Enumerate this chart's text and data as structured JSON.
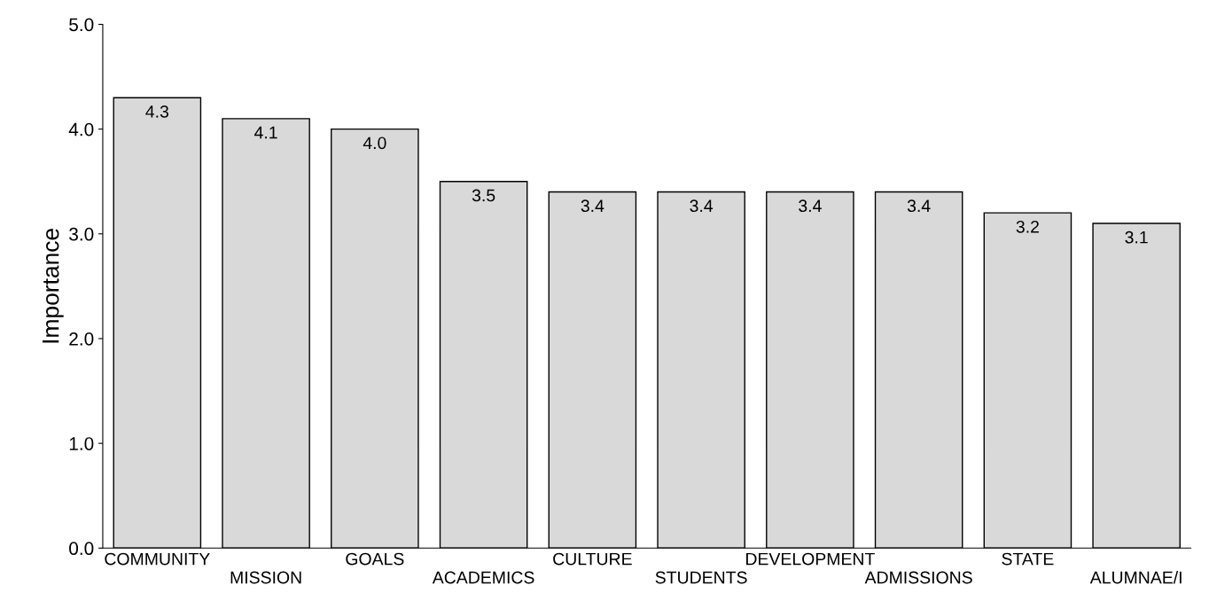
{
  "chart_data": {
    "type": "bar",
    "ylabel": "Importance",
    "categories": [
      "COMMUNITY",
      "MISSION",
      "GOALS",
      "ACADEMICS",
      "CULTURE",
      "STUDENTS",
      "DEVELOPMENT",
      "ADMISSIONS",
      "STATE",
      "ALUMNAE/I"
    ],
    "values": [
      4.3,
      4.1,
      4.0,
      3.5,
      3.4,
      3.4,
      3.4,
      3.4,
      3.2,
      3.1
    ],
    "color": "#d9d9d9",
    "ylim": [
      0,
      5
    ],
    "yticks": [
      {
        "value": 0,
        "label": "0.0"
      },
      {
        "value": 1,
        "label": "1.0"
      },
      {
        "value": 2,
        "label": "2.0"
      },
      {
        "value": 3,
        "label": "3.0"
      },
      {
        "value": 4,
        "label": "4.0"
      },
      {
        "value": 5,
        "label": "5.0"
      }
    ],
    "value_labels": [
      "4.3",
      "4.1",
      "4.0",
      "3.5",
      "3.4",
      "3.4",
      "3.4",
      "3.4",
      "3.2",
      "3.1"
    ],
    "grid": false
  }
}
